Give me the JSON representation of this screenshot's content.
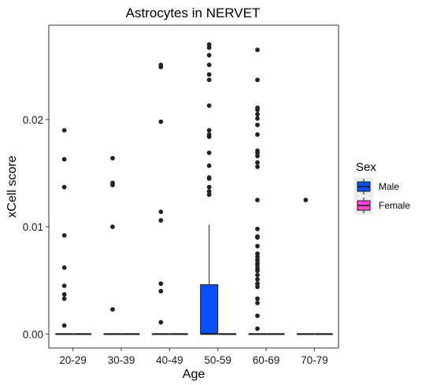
{
  "chart_data": {
    "type": "box",
    "title": "Astrocytes in NERVET",
    "xlabel": "Age",
    "ylabel": "xCell score",
    "categories": [
      "20-29",
      "30-39",
      "40-49",
      "50-59",
      "60-69",
      "70-79"
    ],
    "y_ticks": [
      0.0,
      0.01,
      0.02
    ],
    "y_tick_labels": [
      "0.00",
      "0.01",
      "0.02"
    ],
    "ylim": [
      -0.0013,
      0.0288
    ],
    "grid": false,
    "legend": {
      "title": "Sex",
      "position": "right",
      "entries": [
        {
          "name": "Male",
          "color": "#0a4fff"
        },
        {
          "name": "Female",
          "color": "#ff44d4"
        }
      ]
    },
    "series": [
      {
        "name": "Male",
        "color": "#0a4fff",
        "boxes": [
          {
            "category": "20-29",
            "q1": 0,
            "median": 0,
            "q3": 0,
            "whisker_low": 0,
            "whisker_high": 0,
            "outliers": [
              0.0062,
              0.019,
              0.0163,
              0.0137,
              0.0092,
              0.0045,
              0.0037,
              0.0033,
              0.0008
            ]
          },
          {
            "category": "30-39",
            "q1": 0,
            "median": 0,
            "q3": 0,
            "whisker_low": 0,
            "whisker_high": 0,
            "outliers": [
              0.0164,
              0.0141,
              0.0139,
              0.01,
              0.0023
            ]
          },
          {
            "category": "40-49",
            "q1": 0,
            "median": 0,
            "q3": 0,
            "whisker_low": 0,
            "whisker_high": 0,
            "outliers": [
              0.0251,
              0.0249,
              0.0198,
              0.0114,
              0.0106,
              0.0047,
              0.004,
              0.0011
            ]
          },
          {
            "category": "50-59",
            "q1": 0,
            "median": 0,
            "q3": 0.0046,
            "whisker_low": 0,
            "whisker_high": 0.0102,
            "outliers": [
              0.027,
              0.0267,
              0.026,
              0.0251,
              0.0242,
              0.0237,
              0.0213,
              0.019,
              0.0186,
              0.0184,
              0.0169,
              0.0157,
              0.0146,
              0.0145,
              0.0137,
              0.0133,
              0.013
            ]
          },
          {
            "category": "60-69",
            "q1": 0,
            "median": 0,
            "q3": 0,
            "whisker_low": 0,
            "whisker_high": 0,
            "outliers": [
              0.0265,
              0.0237,
              0.0211,
              0.0209,
              0.0205,
              0.0201,
              0.0195,
              0.0186,
              0.0171,
              0.0169,
              0.0166,
              0.016,
              0.0156,
              0.0125,
              0.0098,
              0.0091,
              0.009,
              0.0082,
              0.0075,
              0.0072,
              0.0069,
              0.0066,
              0.0064,
              0.0061,
              0.0059,
              0.0055,
              0.0051,
              0.0047,
              0.0044,
              0.0033,
              0.0029,
              0.0017,
              0.0005
            ]
          },
          {
            "category": "70-79",
            "q1": 0,
            "median": 0,
            "q3": 0,
            "whisker_low": 0,
            "whisker_high": 0,
            "outliers": [
              0.0125
            ]
          }
        ]
      },
      {
        "name": "Female",
        "color": "#ff44d4",
        "boxes": [
          {
            "category": "20-29",
            "q1": 0,
            "median": 0,
            "q3": 0,
            "whisker_low": 0,
            "whisker_high": 0,
            "outliers": []
          },
          {
            "category": "30-39",
            "q1": 0,
            "median": 0,
            "q3": 0,
            "whisker_low": 0,
            "whisker_high": 0,
            "outliers": []
          },
          {
            "category": "40-49",
            "q1": 0,
            "median": 0,
            "q3": 0,
            "whisker_low": 0,
            "whisker_high": 0,
            "outliers": []
          },
          {
            "category": "50-59",
            "q1": 0,
            "median": 0,
            "q3": 0,
            "whisker_low": 0,
            "whisker_high": 0,
            "outliers": []
          },
          {
            "category": "60-69",
            "q1": 0,
            "median": 0,
            "q3": 0,
            "whisker_low": 0,
            "whisker_high": 0,
            "outliers": []
          },
          {
            "category": "70-79",
            "q1": 0,
            "median": 0,
            "q3": 0,
            "whisker_low": 0,
            "whisker_high": 0,
            "outliers": []
          }
        ]
      }
    ]
  }
}
